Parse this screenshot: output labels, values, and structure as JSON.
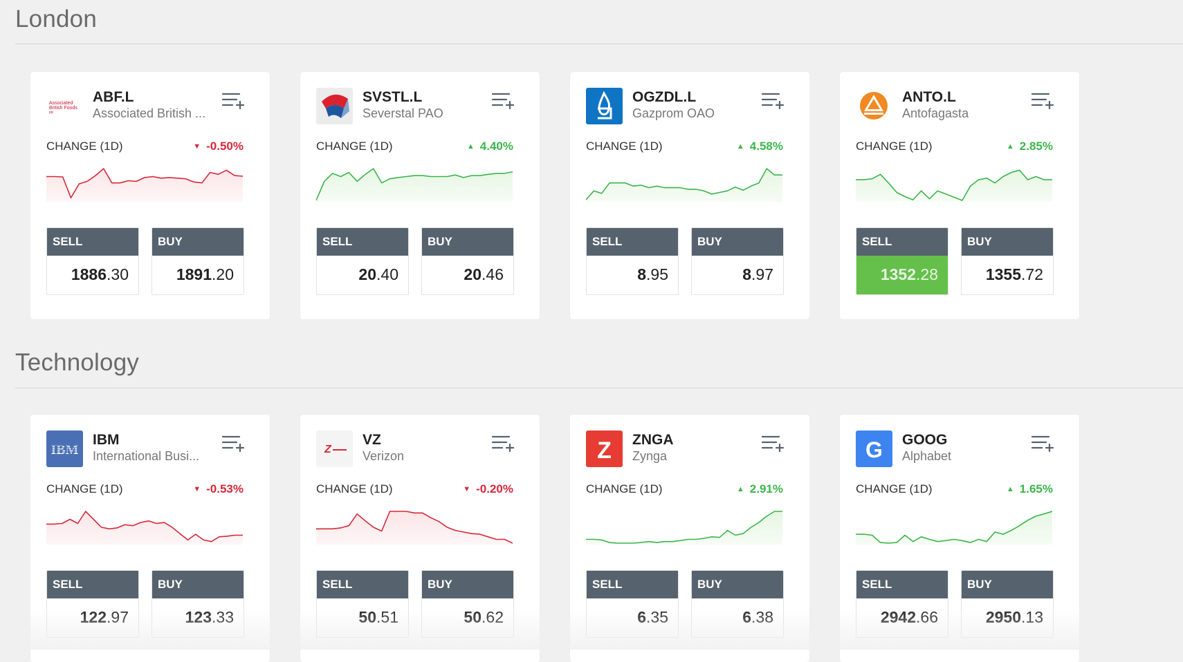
{
  "sections": [
    {
      "title": "London",
      "cards": [
        {
          "ticker": "ABF.L",
          "name": "Associated British ...",
          "logo": "abf-logo",
          "logo_text": [
            "Associated",
            "British Foods",
            "plc"
          ],
          "change_label": "CHANGE (1D)",
          "change": "-0.50%",
          "direction": "down",
          "spark": [
            0.75,
            0.75,
            0.74,
            0.08,
            0.52,
            0.6,
            0.78,
            1.0,
            0.55,
            0.55,
            0.62,
            0.6,
            0.72,
            0.75,
            0.7,
            0.72,
            0.7,
            0.68,
            0.58,
            0.55,
            0.88,
            0.82,
            0.95,
            0.78,
            0.76
          ],
          "sell_label": "SELL",
          "sell_int": "1886",
          "sell_dec": ".30",
          "buy_label": "BUY",
          "buy_int": "1891",
          "buy_dec": ".20",
          "sell_active": false
        },
        {
          "ticker": "SVSTL.L",
          "name": "Severstal PAO",
          "logo": "severstal-logo",
          "change_label": "CHANGE (1D)",
          "change": "4.40%",
          "direction": "up",
          "spark": [
            0.0,
            0.6,
            0.85,
            0.75,
            0.88,
            0.6,
            0.82,
            1.0,
            0.55,
            0.68,
            0.72,
            0.75,
            0.78,
            0.78,
            0.75,
            0.75,
            0.75,
            0.8,
            0.72,
            0.78,
            0.78,
            0.82,
            0.85,
            0.85,
            0.9
          ],
          "sell_label": "SELL",
          "sell_int": "20",
          "sell_dec": ".40",
          "buy_label": "BUY",
          "buy_int": "20",
          "buy_dec": ".46",
          "sell_active": false
        },
        {
          "ticker": "OGZDL.L",
          "name": "Gazprom OAO",
          "logo": "gazprom-logo",
          "change_label": "CHANGE (1D)",
          "change": "4.58%",
          "direction": "up",
          "spark": [
            0.02,
            0.3,
            0.22,
            0.55,
            0.55,
            0.55,
            0.45,
            0.48,
            0.4,
            0.45,
            0.4,
            0.4,
            0.4,
            0.35,
            0.35,
            0.3,
            0.2,
            0.25,
            0.3,
            0.42,
            0.32,
            0.45,
            0.55,
            1.0,
            0.8,
            0.8
          ],
          "sell_label": "SELL",
          "sell_int": "8",
          "sell_dec": ".95",
          "buy_label": "BUY",
          "buy_int": "8",
          "buy_dec": ".97",
          "sell_active": false
        },
        {
          "ticker": "ANTO.L",
          "name": "Antofagasta",
          "logo": "antofagasta-logo",
          "change_label": "CHANGE (1D)",
          "change": "2.85%",
          "direction": "up",
          "spark": [
            0.65,
            0.65,
            0.68,
            0.82,
            0.55,
            0.25,
            0.12,
            0.02,
            0.3,
            0.05,
            0.3,
            0.2,
            0.1,
            0.0,
            0.45,
            0.65,
            0.7,
            0.55,
            0.75,
            0.88,
            0.95,
            0.65,
            0.75,
            0.65,
            0.65
          ],
          "sell_label": "SELL",
          "sell_int": "1352",
          "sell_dec": ".28",
          "buy_label": "BUY",
          "buy_int": "1355",
          "buy_dec": ".72",
          "sell_active": true
        }
      ]
    },
    {
      "title": "Technology",
      "cards": [
        {
          "ticker": "IBM",
          "name": "International Busi...",
          "logo": "ibm-logo",
          "logo_text": [
            "IBM"
          ],
          "change_label": "CHANGE (1D)",
          "change": "-0.53%",
          "direction": "down",
          "spark": [
            0.6,
            0.6,
            0.62,
            0.75,
            0.62,
            1.0,
            0.75,
            0.5,
            0.45,
            0.48,
            0.58,
            0.55,
            0.65,
            0.7,
            0.62,
            0.65,
            0.5,
            0.3,
            0.1,
            0.28,
            0.1,
            0.05,
            0.2,
            0.22,
            0.25,
            0.25
          ],
          "sell_label": "SELL",
          "sell_int": "122",
          "sell_dec": ".97",
          "buy_label": "BUY",
          "buy_int": "123",
          "buy_dec": ".33",
          "sell_active": false
        },
        {
          "ticker": "VZ",
          "name": "Verizon",
          "logo": "verizon-logo",
          "logo_text": [
            "Z"
          ],
          "change_label": "CHANGE (1D)",
          "change": "-0.20%",
          "direction": "down",
          "spark": [
            0.45,
            0.45,
            0.45,
            0.48,
            0.55,
            0.92,
            0.7,
            0.5,
            0.38,
            1.0,
            1.0,
            1.0,
            0.95,
            0.95,
            0.8,
            0.68,
            0.5,
            0.4,
            0.35,
            0.3,
            0.28,
            0.2,
            0.12,
            0.12,
            0.0
          ],
          "sell_label": "SELL",
          "sell_int": "50",
          "sell_dec": ".51",
          "buy_label": "BUY",
          "buy_int": "50",
          "buy_dec": ".62",
          "sell_active": false
        },
        {
          "ticker": "ZNGA",
          "name": "Zynga",
          "logo": "zynga-logo",
          "logo_text": [
            "Z"
          ],
          "change_label": "CHANGE (1D)",
          "change": "2.91%",
          "direction": "up",
          "spark": [
            0.12,
            0.12,
            0.1,
            0.02,
            0.0,
            0.0,
            0.0,
            0.02,
            0.05,
            0.02,
            0.05,
            0.05,
            0.08,
            0.12,
            0.12,
            0.15,
            0.2,
            0.18,
            0.4,
            0.25,
            0.3,
            0.5,
            0.65,
            0.85,
            1.0,
            1.0
          ],
          "sell_label": "SELL",
          "sell_int": "6",
          "sell_dec": ".35",
          "buy_label": "BUY",
          "buy_int": "6",
          "buy_dec": ".38",
          "sell_active": false
        },
        {
          "ticker": "GOOG",
          "name": "Alphabet",
          "logo": "google-logo",
          "logo_text": [
            "G"
          ],
          "change_label": "CHANGE (1D)",
          "change": "1.65%",
          "direction": "up",
          "spark": [
            0.28,
            0.28,
            0.25,
            0.02,
            0.0,
            0.02,
            0.25,
            0.05,
            0.2,
            0.12,
            0.05,
            0.08,
            0.12,
            0.08,
            0.02,
            0.12,
            0.05,
            0.35,
            0.28,
            0.4,
            0.55,
            0.72,
            0.85,
            0.92,
            1.0
          ],
          "sell_label": "SELL",
          "sell_int": "2942",
          "sell_dec": ".66",
          "buy_label": "BUY",
          "buy_int": "2950",
          "buy_dec": ".13",
          "sell_active": false
        }
      ]
    }
  ],
  "colors": {
    "up": "#3bb54a",
    "down": "#d6283a",
    "up_fill": "#e6f6e3",
    "down_fill": "#fbe5e7",
    "trade_header": "#56636e",
    "sell_active": "#64c04a"
  },
  "icons": {
    "watchlist": "add-to-watchlist-icon"
  }
}
